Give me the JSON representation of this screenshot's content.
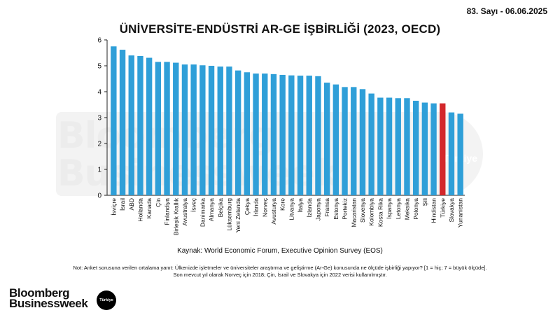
{
  "header": {
    "issue": "83. Sayı - 06.06.2025"
  },
  "chart_data": {
    "type": "bar",
    "title": "ÜNİVERSİTE-ENDÜSTRİ AR-GE İŞBİRLİĞİ (2023, OECD)",
    "xlabel": "",
    "ylabel": "",
    "ylim": [
      0,
      6
    ],
    "yticks": [
      0,
      1,
      2,
      3,
      4,
      5,
      6
    ],
    "grid": false,
    "categories": [
      "İsviçre",
      "İsrail",
      "ABD",
      "Hollanda",
      "Kanada",
      "Çin",
      "Finlandiya",
      "Birleşik Krallık",
      "Avustralya",
      "İsveç",
      "Danimarka",
      "Almanya",
      "Belçika",
      "Lüksemburg",
      "Yeni Zelanda",
      "Çekya",
      "İrlanda",
      "Norveç",
      "Avusturya",
      "Kore",
      "Litvanya",
      "İtalya",
      "İzlanda",
      "Japonya",
      "Fransa",
      "Estonya",
      "Portekiz",
      "Macaristan",
      "Slovenya",
      "Kolombiya",
      "Kosta Rika",
      "İspanya",
      "Letonya",
      "Meksika",
      "Polonya",
      "Şili",
      "Hindistan",
      "Türkiye",
      "Slovakya",
      "Yunanistan"
    ],
    "values": [
      5.75,
      5.62,
      5.4,
      5.38,
      5.31,
      5.15,
      5.15,
      5.12,
      5.05,
      5.05,
      5.02,
      5.0,
      4.97,
      4.97,
      4.82,
      4.75,
      4.7,
      4.7,
      4.68,
      4.65,
      4.63,
      4.62,
      4.62,
      4.6,
      4.35,
      4.28,
      4.18,
      4.18,
      4.1,
      3.93,
      3.77,
      3.77,
      3.75,
      3.75,
      3.65,
      3.58,
      3.55,
      3.55,
      3.2,
      3.15
    ],
    "highlight_category": "Türkiye",
    "colors": {
      "bar": "#2f9fd8",
      "highlight": "#d3272b",
      "axis": "#222222"
    }
  },
  "source": "Kaynak: World Economic Forum, Executive Opinion Survey (EOS)",
  "note": "Not: Anket sorusuna verilen ortalama yanıt: Ülkenizde işletmeler ve üniversiteler araştırma ve geliştirme (Ar-Ge) konusunda ne ölçüde işbirliği yapıyor? [1 = hiç; 7 = büyük ölçüde]. Son mevcut yıl olarak Norveç için 2018; Çin, İsrail ve Slovakya için 2022 verisi kullanılmıştır.",
  "branding": {
    "logo_line1": "Bloomberg",
    "logo_line2": "Businessweek",
    "badge": "Türkiye",
    "watermark_line1": "Bloomberg",
    "watermark_line2": "Businessweek",
    "watermark_badge": "Türkiye"
  }
}
